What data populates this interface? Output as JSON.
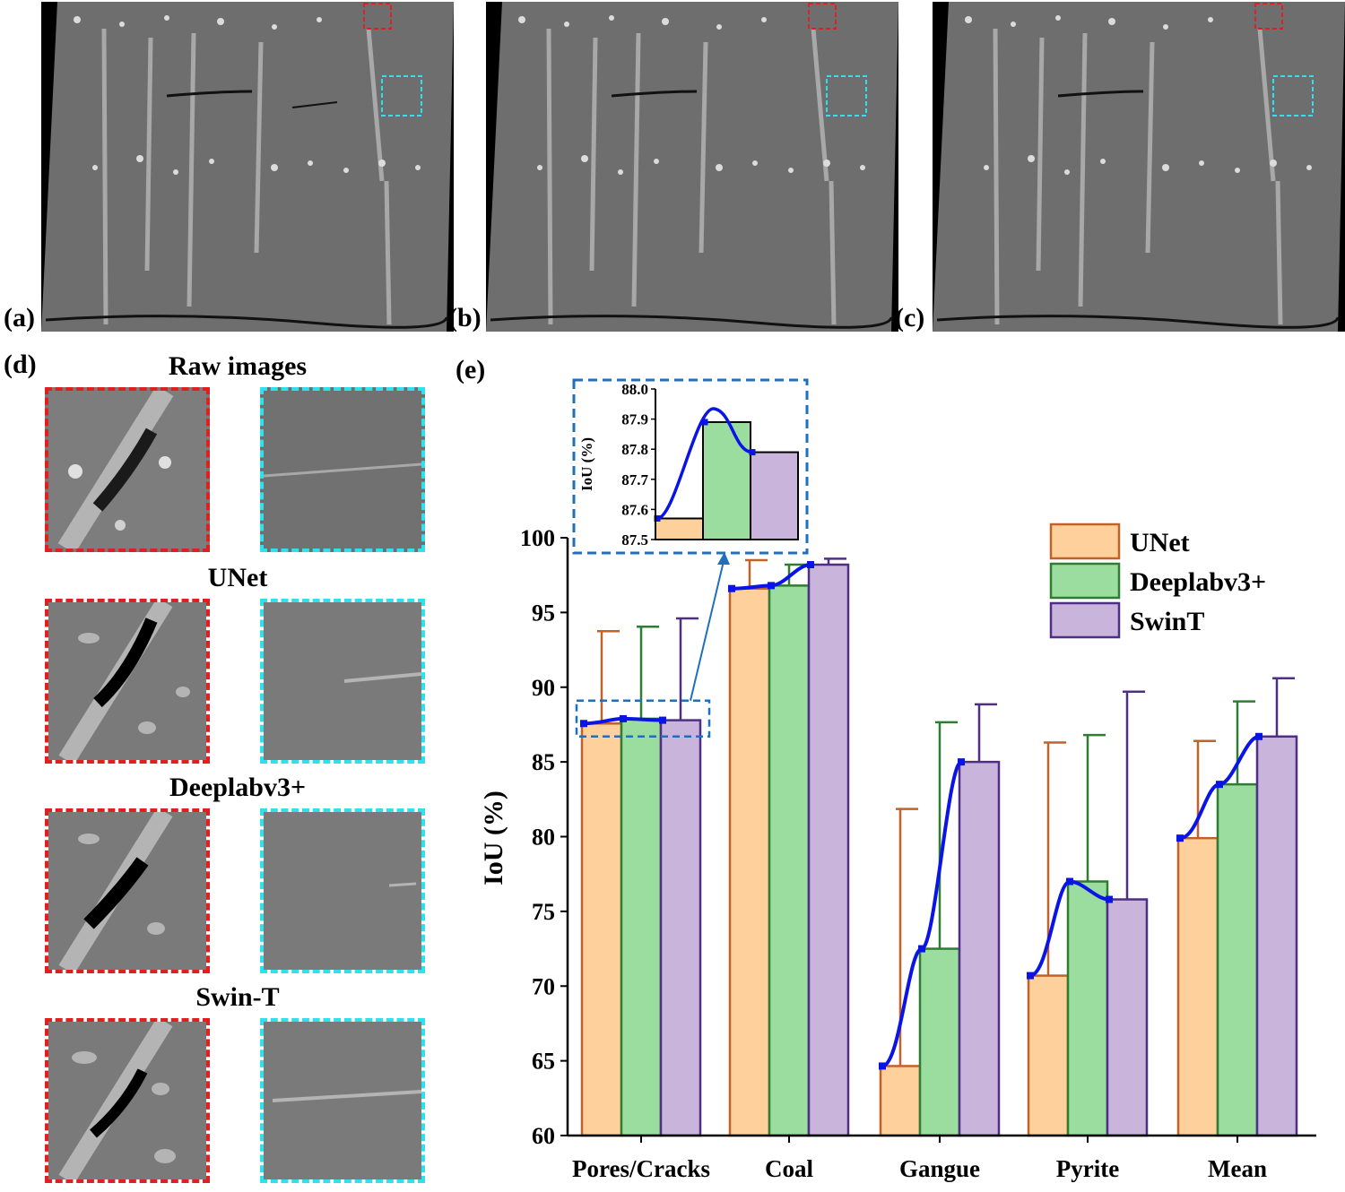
{
  "panel_labels": {
    "a": "(a)",
    "b": "(b)",
    "c": "(c)",
    "d": "(d)",
    "e": "(e)"
  },
  "comparison": {
    "titles": [
      "Raw images",
      "UNet",
      "Deeplabv3+",
      "Swin-T"
    ]
  },
  "colors": {
    "unet_fill": "#fdd09c",
    "unet_edge": "#c0622a",
    "deeplab_fill": "#9bdc9f",
    "deeplab_edge": "#2e7d32",
    "swint_fill": "#c9b4dc",
    "swint_edge": "#4f2f83",
    "trend_line": "#0a14e6",
    "red_box": "#e02020",
    "cyan_box": "#30e0ea",
    "zoom_box": "#1f6fbf"
  },
  "chart_data": {
    "type": "bar",
    "ylabel": "IoU (%)",
    "ylim": [
      60,
      100
    ],
    "yticks": [
      60,
      65,
      70,
      75,
      80,
      85,
      90,
      95,
      100
    ],
    "categories": [
      "Pores/Cracks",
      "Coal",
      "Gangue",
      "Pyrite",
      "Mean"
    ],
    "series": [
      {
        "name": "UNet",
        "values": [
          87.57,
          96.6,
          64.65,
          70.7,
          79.9
        ],
        "err_upper": [
          93.75,
          98.5,
          81.85,
          86.3,
          86.4
        ]
      },
      {
        "name": "Deeplabv3+",
        "values": [
          87.89,
          96.8,
          72.5,
          77.0,
          83.5
        ],
        "err_upper": [
          94.05,
          98.2,
          87.65,
          86.8,
          89.05
        ]
      },
      {
        "name": "SwinT",
        "values": [
          87.79,
          98.2,
          85.0,
          75.8,
          86.7
        ],
        "err_upper": [
          94.6,
          98.6,
          88.85,
          89.7,
          90.6
        ]
      }
    ],
    "legend_position": "top-right",
    "inset": {
      "ylabel": "IoU (%)",
      "ylim": [
        87.5,
        88.0
      ],
      "yticks": [
        "87.5",
        "87.6",
        "87.7",
        "87.8",
        "87.9",
        "88.0"
      ],
      "category": "Pores/Cracks"
    }
  }
}
